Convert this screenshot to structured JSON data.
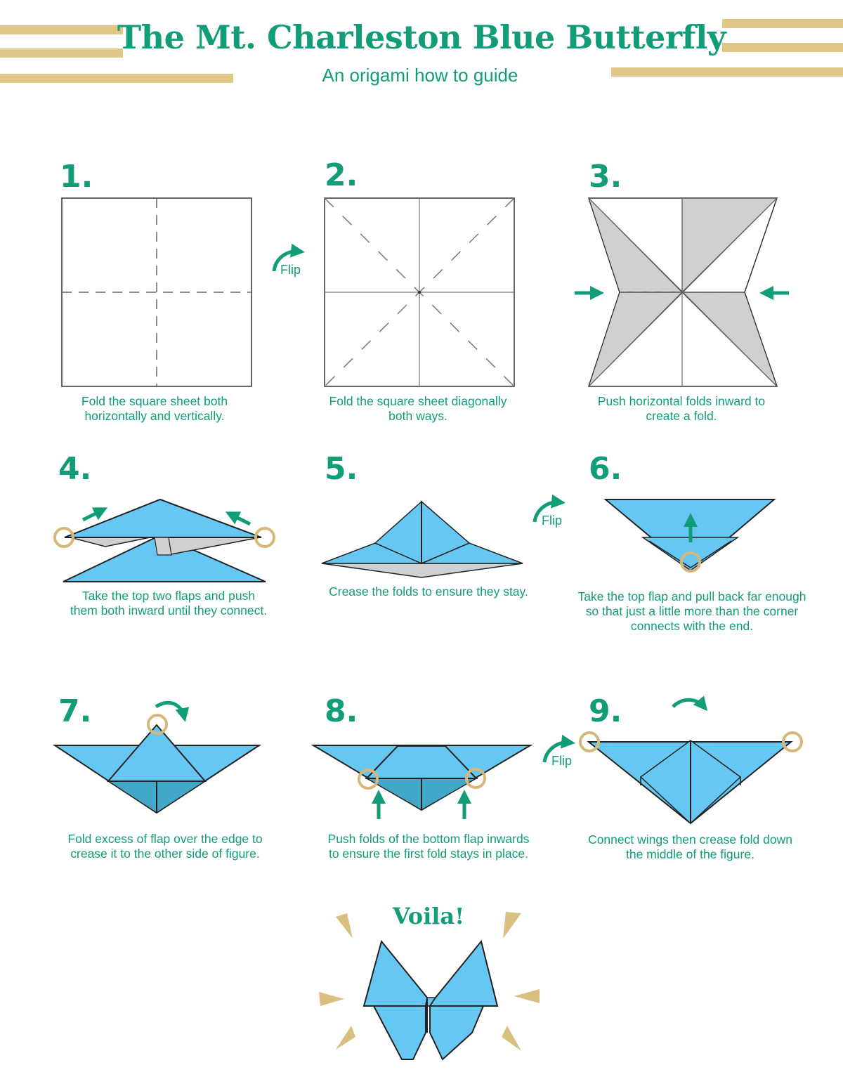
{
  "header": {
    "title": "The Mt. Charleston Blue Butterfly",
    "subtitle": "An origami how to guide"
  },
  "colors": {
    "accent": "#109d77",
    "stripe": "#e2c686",
    "paper_blue": "#66c8f2",
    "paper_blue_dark": "#43a8c8",
    "paper_gray": "#d0d0d2"
  },
  "steps": [
    {
      "number": "1.",
      "caption": "Fold the square sheet both\nhorizontally and vertically."
    },
    {
      "number": "2.",
      "caption": "Fold the square sheet diagonally\nboth ways."
    },
    {
      "number": "3.",
      "caption": "Push horizontal folds inward to\ncreate a fold."
    },
    {
      "number": "4.",
      "caption": "Take the top two flaps and push\nthem both inward until they connect."
    },
    {
      "number": "5.",
      "caption": "Crease the folds to ensure they stay."
    },
    {
      "number": "6.",
      "caption": "Take the top flap and pull back far enough\nso that just a little more than the corner\nconnects with the end."
    },
    {
      "number": "7.",
      "caption": "Fold excess of flap over the edge to\ncrease it to the other side of figure."
    },
    {
      "number": "8.",
      "caption": "Push folds of the bottom flap inwards\nto ensure the first fold stays in place."
    },
    {
      "number": "9.",
      "caption": "Connect wings then crease fold down\nthe middle of the figure."
    }
  ],
  "flip_label": "Flip",
  "finale": {
    "label": "Voila!"
  },
  "icons": [
    "curved-arrow-icon",
    "straight-arrow-icon",
    "highlight-circle-icon",
    "sparkle-triangle-icon"
  ]
}
